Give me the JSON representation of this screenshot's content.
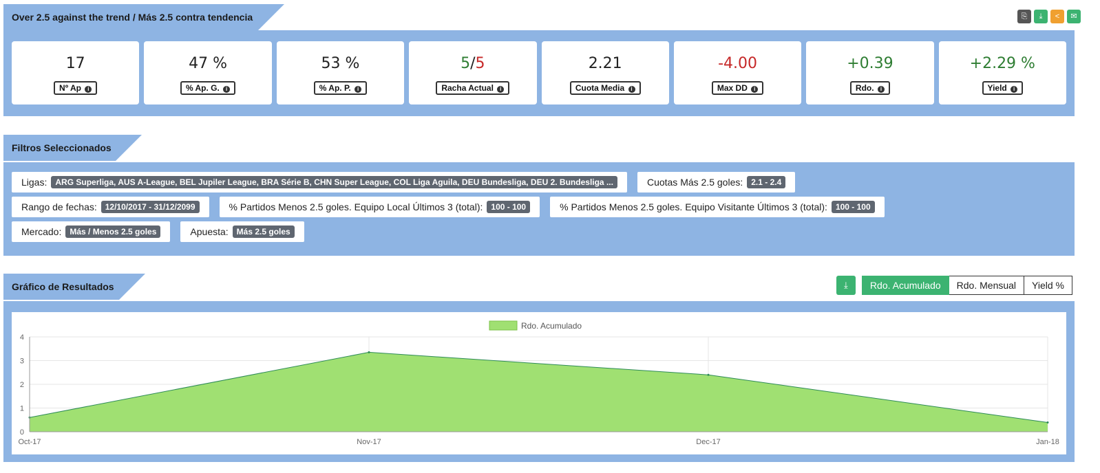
{
  "header": {
    "title": "Over 2.5 against the trend / Más 2.5 contra tendencia"
  },
  "stats": [
    {
      "value": "17",
      "label": "Nº Ap",
      "color": "#222222"
    },
    {
      "value": "47 %",
      "label": "% Ap. G.",
      "color": "#222222"
    },
    {
      "value": "53 %",
      "label": "% Ap. P.",
      "color": "#222222"
    },
    {
      "value_a": "5",
      "value_sep": "/",
      "value_b": "5",
      "label": "Racha Actual"
    },
    {
      "value": "2.21",
      "label": "Cuota Media",
      "color": "#222222"
    },
    {
      "value": "-4.00",
      "label": "Max DD",
      "color": "#c62828"
    },
    {
      "value": "+0.39",
      "label": "Rdo.",
      "color": "#2e7d32"
    },
    {
      "value": "+2.29 %",
      "label": "Yield",
      "color": "#2e7d32"
    }
  ],
  "filters": {
    "title": "Filtros Seleccionados",
    "ligas_label": "Ligas:",
    "ligas_value": "ARG Superliga, AUS A-League, BEL Jupiler League, BRA Série B, CHN Super League, COL Liga Aguila, DEU Bundesliga, DEU 2. Bundesliga ...",
    "cuotas_label": "Cuotas Más 2.5 goles:",
    "cuotas_value": "2.1 - 2.4",
    "rango_label": "Rango de fechas:",
    "rango_value": "12/10/2017 - 31/12/2099",
    "local_label": "% Partidos Menos 2.5 goles. Equipo Local Últimos 3 (total):",
    "local_value": "100 - 100",
    "visit_label": "% Partidos Menos 2.5 goles. Equipo Visitante Últimos 3 (total):",
    "visit_value": "100 - 100",
    "mercado_label": "Mercado:",
    "mercado_value": "Más / Menos 2.5 goles",
    "apuesta_label": "Apuesta:",
    "apuesta_value": "Más 2.5 goles"
  },
  "results": {
    "title": "Gráfico de Resultados",
    "buttons": [
      "Rdo. Acumulado",
      "Rdo. Mensual",
      "Yield %"
    ],
    "active_button": "Rdo. Acumulado"
  },
  "colors": {
    "panel": "#8eb4e3",
    "area_fill": "#a0e072",
    "area_line": "#2e8b57",
    "accent_green": "#3cb371",
    "orange": "#f0a030",
    "dark": "#555555"
  },
  "chart_data": {
    "type": "area",
    "x": [
      "Oct-17",
      "Nov-17",
      "Dec-17",
      "Jan-18"
    ],
    "series": [
      {
        "name": "Rdo. Acumulado",
        "values": [
          0.6,
          3.35,
          2.4,
          0.39
        ]
      }
    ],
    "ylim": [
      0,
      4
    ],
    "yticks": [
      0,
      1,
      2,
      3,
      4
    ],
    "grid": true,
    "legend": "top-center"
  }
}
